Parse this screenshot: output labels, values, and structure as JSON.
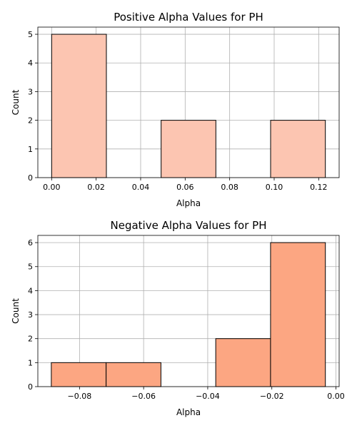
{
  "chart_data": [
    {
      "type": "histogram",
      "title": "Positive Alpha Values for PH",
      "xlabel": "Alpha",
      "ylabel": "Count",
      "bar_color": "#fcc5b1",
      "edge_color": "#000000",
      "bins": [
        {
          "x0": 0.0,
          "x1": 0.0246,
          "count": 5
        },
        {
          "x0": 0.0246,
          "x1": 0.0492,
          "count": 0
        },
        {
          "x0": 0.0492,
          "x1": 0.0738,
          "count": 2
        },
        {
          "x0": 0.0738,
          "x1": 0.0984,
          "count": 0
        },
        {
          "x0": 0.0984,
          "x1": 0.123,
          "count": 2
        }
      ],
      "xlim": [
        -0.0062,
        0.1292
      ],
      "ylim": [
        0,
        5.25
      ],
      "xticks": [
        0.0,
        0.02,
        0.04,
        0.06,
        0.08,
        0.1,
        0.12
      ],
      "xtick_labels": [
        "0.00",
        "0.02",
        "0.04",
        "0.06",
        "0.08",
        "0.10",
        "0.12"
      ],
      "yticks": [
        0,
        1,
        2,
        3,
        4,
        5
      ],
      "ytick_labels": [
        "0",
        "1",
        "2",
        "3",
        "4",
        "5"
      ],
      "grid": true
    },
    {
      "type": "histogram",
      "title": "Negative Alpha Values for PH",
      "xlabel": "Alpha",
      "ylabel": "Count",
      "bar_color": "#fca682",
      "edge_color": "#000000",
      "bins": [
        {
          "x0": -0.0888,
          "x1": -0.0717,
          "count": 1
        },
        {
          "x0": -0.0717,
          "x1": -0.0546,
          "count": 1
        },
        {
          "x0": -0.0546,
          "x1": -0.0375,
          "count": 0
        },
        {
          "x0": -0.0375,
          "x1": -0.0204,
          "count": 2
        },
        {
          "x0": -0.0204,
          "x1": -0.0033,
          "count": 6
        }
      ],
      "xlim": [
        -0.093,
        0.001
      ],
      "ylim": [
        0,
        6.3
      ],
      "xticks": [
        -0.08,
        -0.06,
        -0.04,
        -0.02,
        0.0
      ],
      "xtick_labels": [
        "−0.08",
        "−0.06",
        "−0.04",
        "−0.02",
        "0.00"
      ],
      "yticks": [
        0,
        1,
        2,
        3,
        4,
        5,
        6
      ],
      "ytick_labels": [
        "0",
        "1",
        "2",
        "3",
        "4",
        "5",
        "6"
      ],
      "grid": true
    }
  ]
}
